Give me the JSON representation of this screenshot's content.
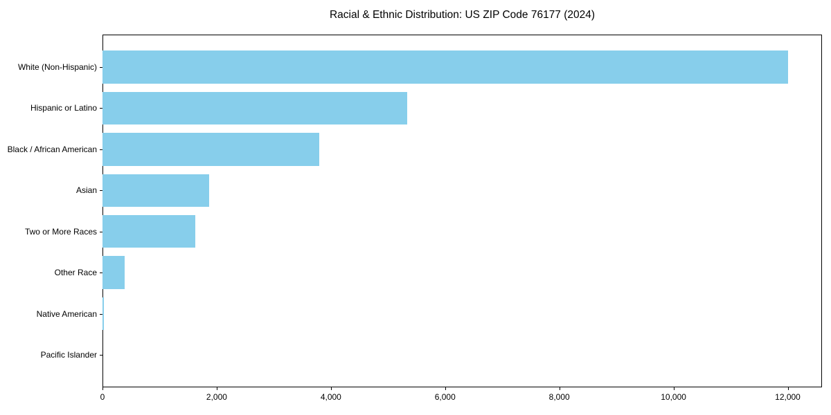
{
  "chart_data": {
    "type": "bar",
    "orientation": "horizontal",
    "title": "Racial & Ethnic Distribution: US ZIP Code 76177 (2024)",
    "categories": [
      "White (Non-Hispanic)",
      "Hispanic or Latino",
      "Black / African American",
      "Asian",
      "Two or More Races",
      "Other Race",
      "Native American",
      "Pacific Islander"
    ],
    "values": [
      12000,
      5330,
      3800,
      1870,
      1630,
      390,
      30,
      0
    ],
    "xlabel": "",
    "ylabel": "",
    "xlim": [
      0,
      12600
    ],
    "x_ticks": [
      0,
      2000,
      4000,
      6000,
      8000,
      10000,
      12000
    ],
    "x_tick_labels": [
      "0",
      "2,000",
      "4,000",
      "6,000",
      "8,000",
      "10,000",
      "12,000"
    ],
    "bar_color": "#87CEEB",
    "bar_relative_height": 0.8,
    "axis_color": "#000000",
    "text_color": "#000000",
    "background_color": "#ffffff",
    "grid": false,
    "legend": null
  }
}
